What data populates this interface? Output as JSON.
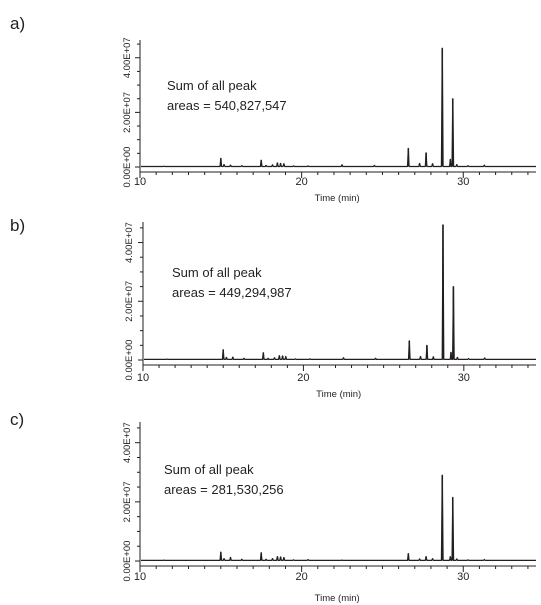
{
  "panels": [
    {
      "label": "a)"
    },
    {
      "label": "b)"
    },
    {
      "label": "c)"
    }
  ],
  "chart_data": [
    {
      "type": "line",
      "xlabel": "Time (min)",
      "xlim": [
        10,
        34.5
      ],
      "ylim": [
        0,
        46500000
      ],
      "x_ticks": [
        "10",
        "20",
        "30"
      ],
      "y_ticks": [
        "0.00E+00",
        "2.00E+07",
        "4.00E+07"
      ],
      "annotation": [
        "Sum of all peak",
        "areas = 540,827,547"
      ],
      "baseline": 200000,
      "peaks": [
        {
          "x": 11.5,
          "y": 300000
        },
        {
          "x": 15.0,
          "y": 3200000
        },
        {
          "x": 15.2,
          "y": 900000
        },
        {
          "x": 15.6,
          "y": 700000
        },
        {
          "x": 16.3,
          "y": 500000
        },
        {
          "x": 17.5,
          "y": 2500000
        },
        {
          "x": 17.8,
          "y": 600000
        },
        {
          "x": 18.2,
          "y": 800000
        },
        {
          "x": 18.5,
          "y": 1500000
        },
        {
          "x": 18.7,
          "y": 1300000
        },
        {
          "x": 18.9,
          "y": 1200000
        },
        {
          "x": 19.5,
          "y": 400000
        },
        {
          "x": 20.4,
          "y": 400000
        },
        {
          "x": 22.5,
          "y": 800000
        },
        {
          "x": 24.5,
          "y": 600000
        },
        {
          "x": 26.6,
          "y": 6800000
        },
        {
          "x": 27.3,
          "y": 1300000
        },
        {
          "x": 27.7,
          "y": 5200000
        },
        {
          "x": 28.1,
          "y": 1200000
        },
        {
          "x": 28.7,
          "y": 43500000
        },
        {
          "x": 29.2,
          "y": 2800000
        },
        {
          "x": 29.35,
          "y": 25000000
        },
        {
          "x": 29.6,
          "y": 900000
        },
        {
          "x": 30.3,
          "y": 500000
        },
        {
          "x": 31.3,
          "y": 700000
        }
      ]
    },
    {
      "type": "line",
      "xlabel": "Time (min)",
      "xlim": [
        10,
        34.5
      ],
      "ylim": [
        0,
        47000000
      ],
      "x_ticks": [
        "10",
        "20",
        "30"
      ],
      "y_ticks": [
        "0.00E+00",
        "2.00E+07",
        "4.00E+07"
      ],
      "annotation": [
        "Sum of all peak",
        "areas = 449,294,987"
      ],
      "baseline": 200000,
      "peaks": [
        {
          "x": 11.5,
          "y": 300000
        },
        {
          "x": 15.0,
          "y": 3500000
        },
        {
          "x": 15.2,
          "y": 900000
        },
        {
          "x": 15.6,
          "y": 1000000
        },
        {
          "x": 16.3,
          "y": 600000
        },
        {
          "x": 17.5,
          "y": 2500000
        },
        {
          "x": 17.8,
          "y": 600000
        },
        {
          "x": 18.2,
          "y": 800000
        },
        {
          "x": 18.5,
          "y": 1500000
        },
        {
          "x": 18.7,
          "y": 1400000
        },
        {
          "x": 18.9,
          "y": 1200000
        },
        {
          "x": 19.5,
          "y": 400000
        },
        {
          "x": 20.4,
          "y": 400000
        },
        {
          "x": 22.5,
          "y": 800000
        },
        {
          "x": 24.5,
          "y": 600000
        },
        {
          "x": 26.6,
          "y": 6500000
        },
        {
          "x": 27.3,
          "y": 1200000
        },
        {
          "x": 27.7,
          "y": 5000000
        },
        {
          "x": 28.1,
          "y": 1100000
        },
        {
          "x": 28.7,
          "y": 46000000
        },
        {
          "x": 29.2,
          "y": 2600000
        },
        {
          "x": 29.35,
          "y": 25000000
        },
        {
          "x": 29.6,
          "y": 900000
        },
        {
          "x": 30.3,
          "y": 500000
        },
        {
          "x": 31.3,
          "y": 700000
        }
      ]
    },
    {
      "type": "line",
      "xlabel": "Time (min)",
      "xlim": [
        10,
        34.5
      ],
      "ylim": [
        0,
        47000000
      ],
      "x_ticks": [
        "10",
        "20",
        "30"
      ],
      "y_ticks": [
        "0.00E+00",
        "2.00E+07",
        "4.00E+07"
      ],
      "annotation": [
        "Sum of all peak",
        "areas = 281,530,256"
      ],
      "baseline": 200000,
      "peaks": [
        {
          "x": 11.5,
          "y": 300000
        },
        {
          "x": 15.0,
          "y": 3000000
        },
        {
          "x": 15.2,
          "y": 800000
        },
        {
          "x": 15.6,
          "y": 1200000
        },
        {
          "x": 16.3,
          "y": 600000
        },
        {
          "x": 17.5,
          "y": 2800000
        },
        {
          "x": 17.8,
          "y": 600000
        },
        {
          "x": 18.2,
          "y": 800000
        },
        {
          "x": 18.5,
          "y": 1500000
        },
        {
          "x": 18.7,
          "y": 1400000
        },
        {
          "x": 18.9,
          "y": 1200000
        },
        {
          "x": 19.5,
          "y": 400000
        },
        {
          "x": 20.4,
          "y": 500000
        },
        {
          "x": 22.5,
          "y": 300000
        },
        {
          "x": 26.6,
          "y": 2500000
        },
        {
          "x": 27.3,
          "y": 700000
        },
        {
          "x": 27.7,
          "y": 1500000
        },
        {
          "x": 28.1,
          "y": 800000
        },
        {
          "x": 28.7,
          "y": 29000000
        },
        {
          "x": 29.2,
          "y": 1500000
        },
        {
          "x": 29.35,
          "y": 21500000
        },
        {
          "x": 29.6,
          "y": 700000
        },
        {
          "x": 30.3,
          "y": 400000
        },
        {
          "x": 31.3,
          "y": 500000
        }
      ]
    }
  ]
}
